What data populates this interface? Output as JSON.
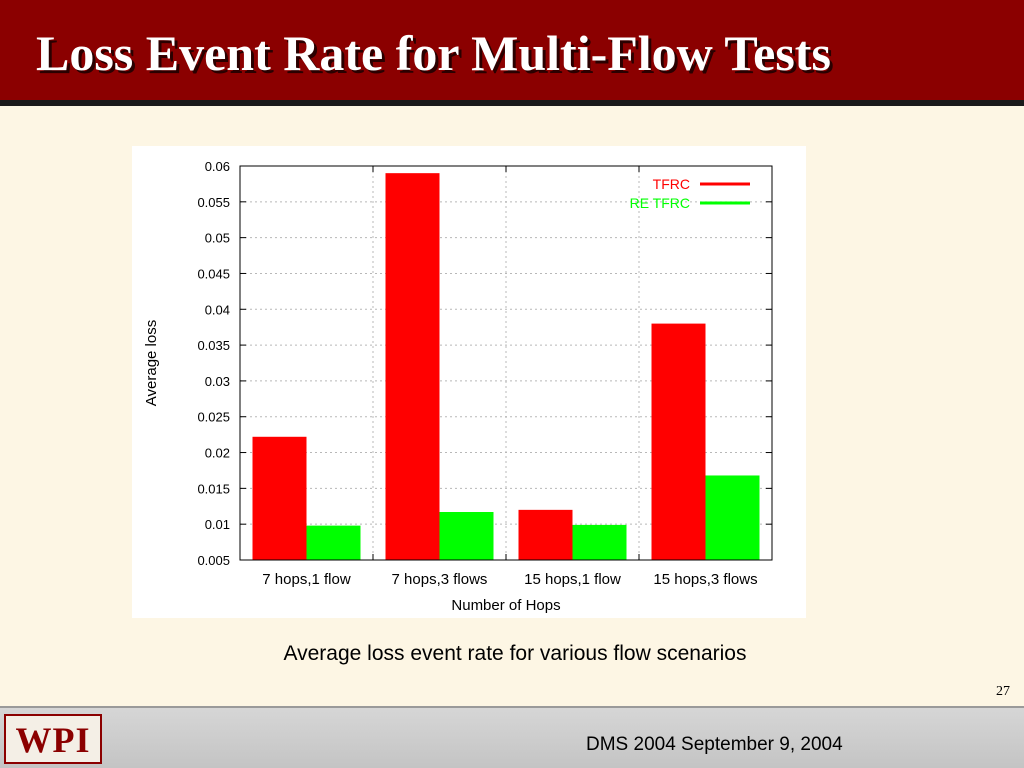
{
  "slide": {
    "title": "Loss Event Rate for Multi-Flow Tests",
    "caption": "Average loss event rate for various flow scenarios",
    "page_number": "27",
    "footer_text": "DMS 2004 September 9, 2004",
    "logo_text": "WPI"
  },
  "colors": {
    "title_bg": "#8b0000",
    "background": "#fdf6e4",
    "tfrc": "#ff0000",
    "re_tfrc": "#00ff00"
  },
  "chart_data": {
    "type": "bar",
    "title": "",
    "xlabel": "Number of Hops",
    "ylabel": "Average loss",
    "ylim": [
      0.005,
      0.06
    ],
    "yticks": [
      "0.005",
      "0.01",
      "0.015",
      "0.02",
      "0.025",
      "0.03",
      "0.035",
      "0.04",
      "0.045",
      "0.05",
      "0.055",
      "0.06"
    ],
    "categories": [
      "7 hops,1 flow",
      "7 hops,3 flows",
      "15 hops,1 flow",
      "15 hops,3 flows"
    ],
    "series": [
      {
        "name": "TFRC",
        "color": "#ff0000",
        "values": [
          0.0222,
          0.059,
          0.012,
          0.038
        ]
      },
      {
        "name": "RE TFRC",
        "color": "#00ff00",
        "values": [
          0.0098,
          0.0117,
          0.0099,
          0.0168
        ]
      }
    ],
    "grid": true,
    "legend_position": "top-right"
  }
}
